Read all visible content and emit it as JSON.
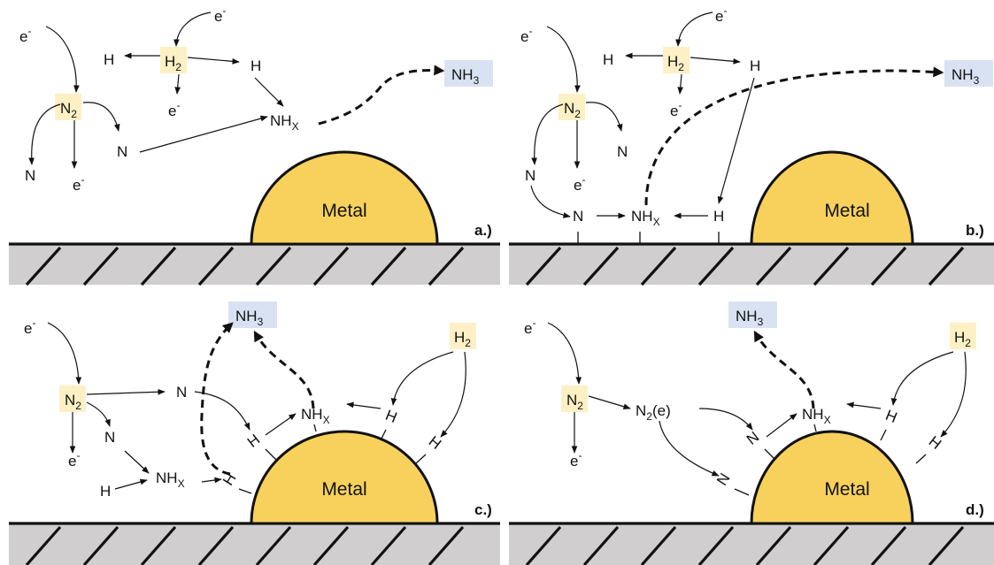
{
  "labels": {
    "N2": "N",
    "H2": "H",
    "two": "2",
    "three": "3",
    "x": "X",
    "NH": "NH",
    "N": "N",
    "H": "H",
    "e": "e",
    "minus": "-",
    "metal": "Metal",
    "n2e": "(e)"
  },
  "panels": [
    "a.)",
    "b.)",
    "c.)",
    "d.)"
  ],
  "colors": {
    "species_box": "#fdf0c4",
    "product_box": "#d9e2f3",
    "metal_fill": "#f7d15c",
    "support_fill": "#d0cece"
  }
}
